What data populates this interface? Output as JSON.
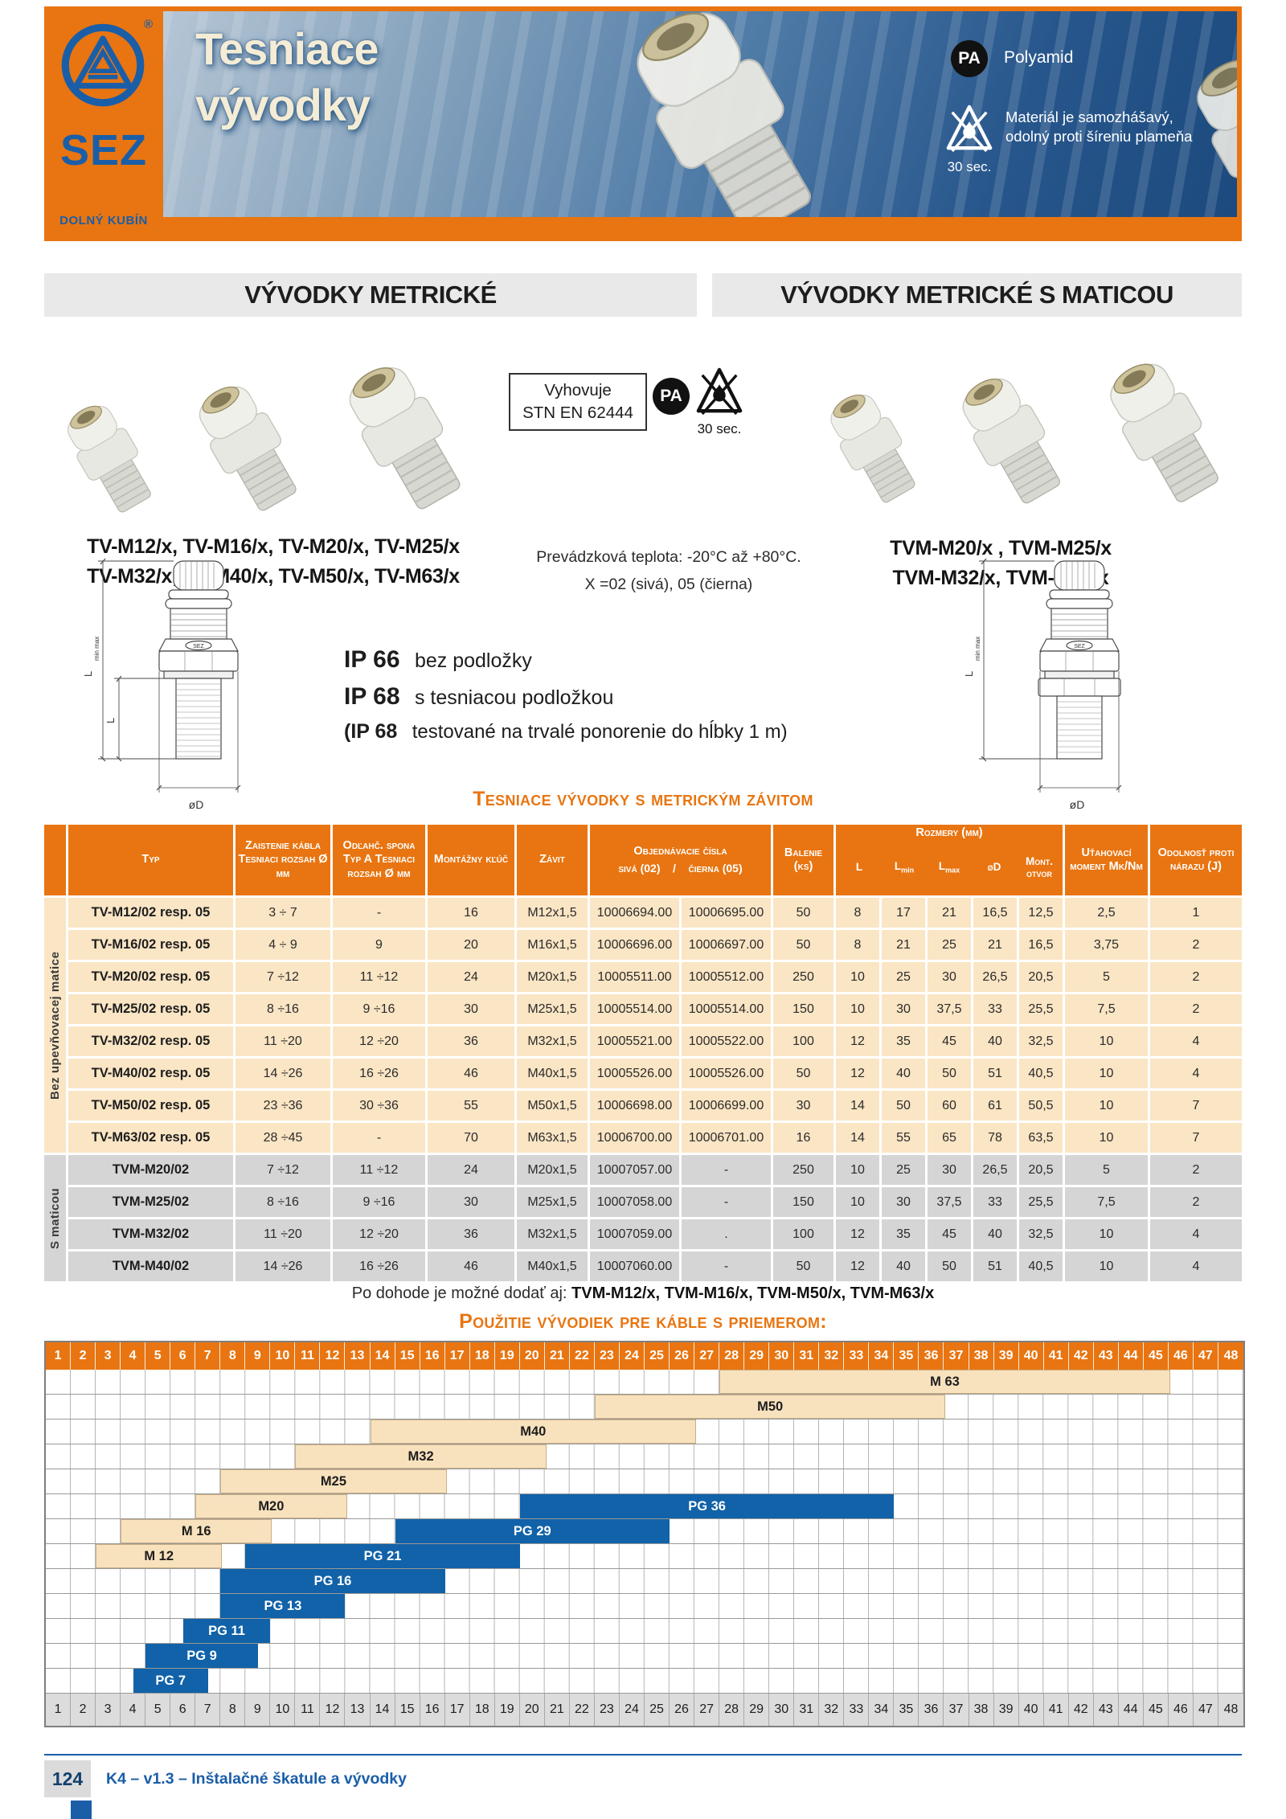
{
  "banner": {
    "brand": "SEZ",
    "brand_sub": "DOLNÝ KUBÍN",
    "registered": "®",
    "title_line1": "Tesniace",
    "title_line2": "vývodky",
    "pa_badge": "PA",
    "pa_label": "Polyamid",
    "flame_caption": "30 sec.",
    "flame_text": "Materiál je samozhášavý, odolný proti šíreniu plameňa"
  },
  "sections": {
    "left_title": "VÝVODKY METRICKÉ",
    "right_title": "VÝVODKY METRICKÉ S MATICOU"
  },
  "intro": {
    "compliance_1": "Vyhovuje",
    "compliance_2": "STN EN 62444",
    "pa_badge": "PA",
    "flame_caption": "30 sec.",
    "models_left_1": "TV-M12/x, TV-M16/x, TV-M20/x, TV-M25/x",
    "models_left_2": "TV-M32/x, TV-M40/x, TV-M50/x, TV-M63/x",
    "temp_1": "Prevádzková teplota: -20°C až +80°C.",
    "temp_2": "X =02 (sivá), 05 (čierna)",
    "models_right_1": "TVM-M20/x , TVM-M25/x",
    "models_right_2": "TVM-M32/x,  TVM-M40/x"
  },
  "ip": {
    "c1": "IP 66",
    "t1": "bez podložky",
    "c2": "IP 68",
    "t2": "s tesniacou podložkou",
    "c3": "(IP 68",
    "t3": "testované na trvalé ponorenie do hĺbky 1 m)"
  },
  "drawing": {
    "dim_l": "L",
    "dim_l_sub": "min max",
    "dim_l2": "L",
    "dim_d": "øD",
    "logo": "SEZ"
  },
  "table": {
    "title": "Tesniace vývodky s metrickým závitom",
    "headers": {
      "typ": "Typ",
      "zaistenie": "Zaistenie kábla Tesniaci rozsah Ø mm",
      "odlahc": "Odľahč. spona Typ A Tesniaci rozsah Ø mm",
      "montazny": "Montážny kľúč",
      "zavit": "Závit",
      "objednavacie": "Objednávacie čísla",
      "objednavacie_sub": "sivá (02)    /    čierna (05)",
      "balenie": "Balenie (ks)",
      "rozmery": "Rozmery (mm)",
      "rozmery_sub": [
        {
          "t": "L",
          "s": ""
        },
        {
          "t": "L",
          "s": "min"
        },
        {
          "t": "L",
          "s": "max"
        },
        {
          "t": "øD",
          "s": ""
        },
        {
          "t": "Mont. otvor",
          "s": ""
        }
      ],
      "utahovaci": "Uťahovací moment Mk/Nm",
      "odolnost": "Odolnosť proti nárazu (J)"
    },
    "groups": [
      {
        "label": "Bez upevňovacej matice",
        "rows": 8,
        "style": "beige"
      },
      {
        "label": "S maticou",
        "rows": 4,
        "style": "gray"
      }
    ],
    "rows": [
      [
        "TV-M12/02 resp. 05",
        "3 ÷ 7",
        "-",
        "16",
        "M12x1,5",
        "10006694.00",
        "10006695.00",
        "50",
        "8",
        "17",
        "21",
        "16,5",
        "12,5",
        "2,5",
        "1"
      ],
      [
        "TV-M16/02 resp. 05",
        "4 ÷ 9",
        "9",
        "20",
        "M16x1,5",
        "10006696.00",
        "10006697.00",
        "50",
        "8",
        "21",
        "25",
        "21",
        "16,5",
        "3,75",
        "2"
      ],
      [
        "TV-M20/02 resp. 05",
        "7 ÷12",
        "11 ÷12",
        "24",
        "M20x1,5",
        "10005511.00",
        "10005512.00",
        "250",
        "10",
        "25",
        "30",
        "26,5",
        "20,5",
        "5",
        "2"
      ],
      [
        "TV-M25/02 resp. 05",
        "8 ÷16",
        "9 ÷16",
        "30",
        "M25x1,5",
        "10005514.00",
        "10005514.00",
        "150",
        "10",
        "30",
        "37,5",
        "33",
        "25,5",
        "7,5",
        "2"
      ],
      [
        "TV-M32/02 resp. 05",
        "11 ÷20",
        "12 ÷20",
        "36",
        "M32x1,5",
        "10005521.00",
        "10005522.00",
        "100",
        "12",
        "35",
        "45",
        "40",
        "32,5",
        "10",
        "4"
      ],
      [
        "TV-M40/02 resp. 05",
        "14 ÷26",
        "16 ÷26",
        "46",
        "M40x1,5",
        "10005526.00",
        "10005526.00",
        "50",
        "12",
        "40",
        "50",
        "51",
        "40,5",
        "10",
        "4"
      ],
      [
        "TV-M50/02 resp. 05",
        "23 ÷36",
        "30 ÷36",
        "55",
        "M50x1,5",
        "10006698.00",
        "10006699.00",
        "30",
        "14",
        "50",
        "60",
        "61",
        "50,5",
        "10",
        "7"
      ],
      [
        "TV-M63/02 resp. 05",
        "28 ÷45",
        "-",
        "70",
        "M63x1,5",
        "10006700.00",
        "10006701.00",
        "16",
        "14",
        "55",
        "65",
        "78",
        "63,5",
        "10",
        "7"
      ],
      [
        "TVM-M20/02",
        "7 ÷12",
        "11 ÷12",
        "24",
        "M20x1,5",
        "10007057.00",
        "-",
        "250",
        "10",
        "25",
        "30",
        "26,5",
        "20,5",
        "5",
        "2"
      ],
      [
        "TVM-M25/02",
        "8 ÷16",
        "9 ÷16",
        "30",
        "M25x1,5",
        "10007058.00",
        "-",
        "150",
        "10",
        "30",
        "37,5",
        "33",
        "25,5",
        "7,5",
        "2"
      ],
      [
        "TVM-M32/02",
        "11 ÷20",
        "12 ÷20",
        "36",
        "M32x1,5",
        "10007059.00",
        ".",
        "100",
        "12",
        "35",
        "45",
        "40",
        "32,5",
        "10",
        "4"
      ],
      [
        "TVM-M40/02",
        "14 ÷26",
        "16 ÷26",
        "46",
        "M40x1,5",
        "10007060.00",
        "-",
        "50",
        "12",
        "40",
        "50",
        "51",
        "40,5",
        "10",
        "4"
      ]
    ],
    "note_prefix": "Po dohode je možné dodať aj:",
    "note_models": "TVM-M12/x, TVM-M16/x, TVM-M50/x, TVM-M63/x"
  },
  "chart_data": {
    "type": "range-bars",
    "title": "Použitie vývodiek pre káble s priemerom:",
    "x_min": 1,
    "x_max": 48,
    "axis_position": "top and bottom, numbered columns 1–48 (cable diameter in mm)",
    "rows": [
      {
        "bars": [
          {
            "label": "M 63",
            "from": 27,
            "to": 45,
            "color": "beige"
          }
        ]
      },
      {
        "bars": [
          {
            "label": "M50",
            "from": 22,
            "to": 36,
            "color": "beige"
          }
        ]
      },
      {
        "bars": [
          {
            "label": "M40",
            "from": 13,
            "to": 26,
            "color": "beige"
          }
        ]
      },
      {
        "bars": [
          {
            "label": "M32",
            "from": 10,
            "to": 20,
            "color": "beige"
          }
        ]
      },
      {
        "bars": [
          {
            "label": "M25",
            "from": 7,
            "to": 16,
            "color": "beige"
          }
        ]
      },
      {
        "bars": [
          {
            "label": "M20",
            "from": 6,
            "to": 12,
            "color": "beige"
          },
          {
            "label": "PG 36",
            "from": 19,
            "to": 34,
            "color": "blue"
          }
        ]
      },
      {
        "bars": [
          {
            "label": "M 16",
            "from": 3,
            "to": 9,
            "color": "beige"
          },
          {
            "label": "PG 29",
            "from": 14,
            "to": 25,
            "color": "blue"
          }
        ]
      },
      {
        "bars": [
          {
            "label": "M 12",
            "from": 2,
            "to": 7,
            "color": "beige"
          },
          {
            "label": "PG 21",
            "from": 8,
            "to": 19,
            "color": "blue"
          }
        ]
      },
      {
        "bars": [
          {
            "label": "PG 16",
            "from": 7,
            "to": 16,
            "color": "blue"
          }
        ]
      },
      {
        "bars": [
          {
            "label": "PG 13",
            "from": 7,
            "to": 12,
            "color": "blue"
          }
        ]
      },
      {
        "bars": [
          {
            "label": "PG 11",
            "from": 5.5,
            "to": 9,
            "color": "blue"
          }
        ]
      },
      {
        "bars": [
          {
            "label": "PG 9",
            "from": 4,
            "to": 8.5,
            "color": "blue"
          }
        ]
      },
      {
        "bars": [
          {
            "label": "PG 7",
            "from": 3.5,
            "to": 6.5,
            "color": "blue"
          }
        ]
      }
    ]
  },
  "footer": {
    "page_number": "124",
    "text": "K4 – v1.3 – Inštalačné škatule a vývodky"
  },
  "colors": {
    "orange": "#E87511",
    "blue": "#1A5EA8",
    "chart_blue": "#1162A8",
    "beige": "#FAE5C4",
    "bar_beige": "#F8E2BE",
    "row_gray": "#D5D5D5"
  }
}
